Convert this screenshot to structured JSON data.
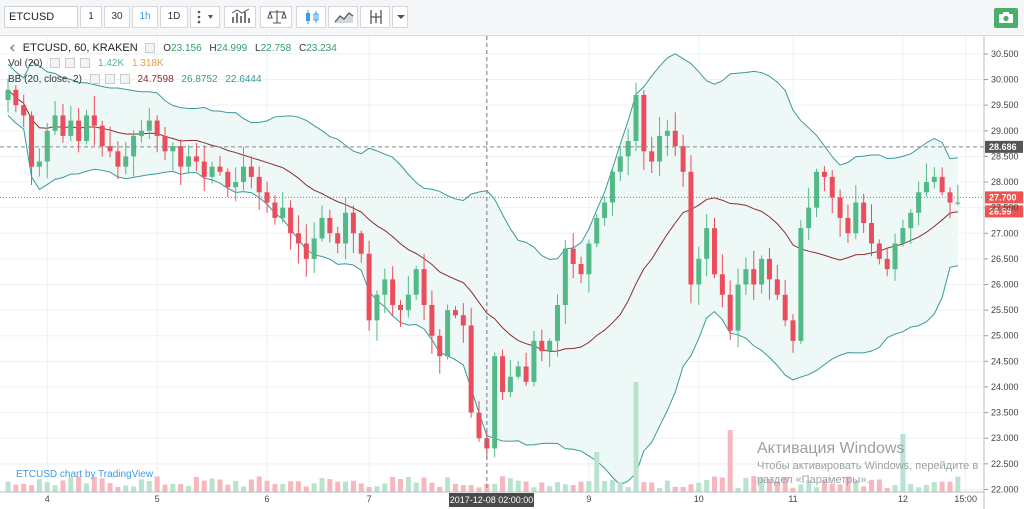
{
  "toolbar": {
    "symbol_value": "ETCUSD",
    "intervals": [
      "1",
      "30",
      "1h",
      "1D"
    ],
    "active_interval": "1h"
  },
  "legend": {
    "title": "ETCUSD, 60, KRAKEN",
    "ohlc": [
      {
        "label": "O",
        "value": "23.156"
      },
      {
        "label": "H",
        "value": "24.999"
      },
      {
        "label": "L",
        "value": "22.758"
      },
      {
        "label": "C",
        "value": "23.234"
      }
    ],
    "volume": {
      "name": "Vol (20)",
      "v1": "1.42K",
      "v2": "1.318K"
    },
    "bb": {
      "name": "BB (20, close, 2)",
      "v1": "24.7598",
      "v2": "26.8752",
      "v3": "22.6444"
    }
  },
  "brand": "ETCUSD chart by TradingView",
  "watermark": {
    "line1": "Активация Windows",
    "line2": "Чтобы активировать Windows, перейдите в",
    "line3": "раздел «Параметры»."
  },
  "crosshair_time": "2017-12-08 02:00:00",
  "colors": {
    "up": "#53b987",
    "down": "#eb4d5c",
    "band": "#3a9a97",
    "band_fill": "#eef8f7",
    "basis": "#8b2d2d",
    "last_price": "#ef5350",
    "crosshair_price": "#555555"
  },
  "chart_data": {
    "type": "candlestick",
    "symbol": "ETCUSD",
    "interval": "60",
    "exchange": "KRAKEN",
    "ylim": [
      21.95,
      30.85
    ],
    "yticks": [
      "30.500",
      "30.000",
      "29.500",
      "29.000",
      "28.500",
      "28.000",
      "27.500",
      "27.000",
      "26.500",
      "26.000",
      "25.500",
      "25.000",
      "24.500",
      "24.000",
      "23.500",
      "23.000",
      "22.500",
      "22.000"
    ],
    "xticks": [
      {
        "label": "4",
        "index": 5
      },
      {
        "label": "5",
        "index": 19
      },
      {
        "label": "6",
        "index": 33
      },
      {
        "label": "7",
        "index": 46
      },
      {
        "label": "9",
        "index": 74
      },
      {
        "label": "10",
        "index": 88
      },
      {
        "label": "11",
        "index": 100
      },
      {
        "label": "12",
        "index": 114
      },
      {
        "label": "15:00",
        "index": 122
      }
    ],
    "last_price": "27.700",
    "crosshair_price": "28.686",
    "last_price_tag2": "26.99",
    "crosshair_index": 61,
    "closes": [
      29.8,
      29.5,
      29.3,
      28.3,
      28.4,
      29.0,
      29.3,
      28.9,
      29.2,
      28.8,
      29.3,
      29.1,
      28.7,
      28.6,
      28.3,
      28.5,
      28.9,
      29.0,
      29.2,
      28.9,
      28.6,
      28.7,
      28.3,
      28.5,
      28.4,
      28.1,
      28.3,
      28.2,
      27.9,
      28.0,
      28.3,
      28.1,
      27.8,
      27.6,
      27.3,
      27.5,
      27.0,
      26.8,
      26.5,
      26.9,
      27.3,
      27.0,
      26.8,
      27.4,
      27.0,
      26.6,
      25.3,
      25.8,
      26.1,
      25.6,
      25.5,
      25.8,
      26.3,
      25.6,
      25.0,
      24.6,
      25.5,
      25.4,
      25.2,
      23.5,
      23.0,
      22.8,
      24.6,
      23.9,
      24.2,
      24.4,
      24.1,
      24.9,
      24.7,
      24.9,
      25.6,
      26.7,
      26.4,
      26.2,
      26.8,
      27.3,
      27.6,
      28.2,
      28.5,
      28.8,
      29.7,
      28.6,
      28.4,
      28.9,
      29.0,
      28.7,
      28.2,
      26.0,
      26.5,
      27.1,
      26.2,
      25.8,
      25.1,
      26.0,
      26.3,
      26.0,
      26.5,
      26.1,
      25.8,
      25.3,
      24.9,
      27.1,
      27.5,
      28.2,
      28.1,
      27.7,
      27.3,
      27.0,
      27.6,
      27.2,
      26.8,
      26.5,
      26.3,
      26.8,
      27.1,
      27.4,
      27.8,
      28.0,
      28.1,
      27.8,
      27.6,
      27.6
    ],
    "basis_line": {
      "name": "Basis",
      "start": 29.0,
      "end": 27.1
    },
    "volume_last": "1.42K",
    "volume_ma": "1.318K"
  }
}
